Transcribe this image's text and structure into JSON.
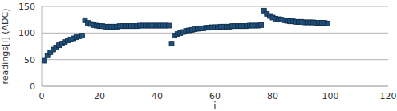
{
  "chart_data": {
    "type": "scatter",
    "x_label": "i",
    "y_label": "readings[i] (ADC)",
    "x": [
      1,
      2,
      3,
      4,
      5,
      6,
      7,
      8,
      9,
      10,
      11,
      12,
      13,
      14,
      15,
      16,
      17,
      18,
      19,
      20,
      21,
      22,
      23,
      24,
      25,
      26,
      27,
      28,
      29,
      30,
      31,
      32,
      33,
      34,
      35,
      36,
      37,
      38,
      39,
      40,
      41,
      42,
      43,
      44,
      45,
      46,
      47,
      48,
      49,
      50,
      51,
      52,
      53,
      54,
      55,
      56,
      57,
      58,
      59,
      60,
      61,
      62,
      63,
      64,
      65,
      66,
      67,
      68,
      69,
      70,
      71,
      72,
      73,
      74,
      75,
      76,
      77,
      78,
      79,
      80,
      81,
      82,
      83,
      84,
      85,
      86,
      87,
      88,
      89,
      90,
      91,
      92,
      93,
      94,
      95,
      96,
      97,
      98,
      99
    ],
    "values": [
      48,
      58,
      64,
      69,
      73,
      77,
      80,
      83,
      86,
      88,
      90,
      92,
      94,
      95,
      124,
      119,
      117,
      115,
      114,
      113,
      113,
      112,
      112,
      112,
      112,
      112,
      113,
      113,
      113,
      113,
      113,
      113,
      113,
      114,
      114,
      114,
      114,
      114,
      114,
      114,
      114,
      114,
      114,
      114,
      80,
      95,
      98,
      100,
      102,
      104,
      105,
      106,
      107,
      108,
      109,
      109,
      110,
      110,
      111,
      111,
      111,
      112,
      112,
      112,
      112,
      113,
      113,
      113,
      113,
      113,
      113,
      114,
      114,
      114,
      114,
      115,
      142,
      136,
      132,
      129,
      127,
      126,
      125,
      124,
      123,
      122,
      122,
      121,
      121,
      121,
      120,
      120,
      120,
      120,
      119,
      119,
      119,
      119,
      118
    ],
    "color": "#1f4e79",
    "marker": "square",
    "xlim": [
      0,
      120
    ],
    "xticks": [
      0,
      20,
      40,
      60,
      80,
      100,
      120
    ],
    "ylim": [
      0,
      150
    ],
    "yticks": [
      0,
      50,
      100,
      150
    ],
    "grid": true
  }
}
